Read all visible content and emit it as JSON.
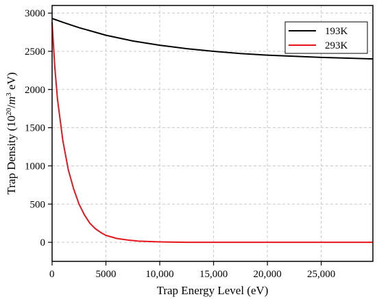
{
  "chart_data": {
    "type": "line",
    "title": "",
    "xlabel": "Trap Energy Level (eV)",
    "ylabel": {
      "prefix": "Trap Density (10",
      "sup1": "20",
      "mid": "/",
      "unit_m": "m",
      "sup2": "3",
      "suffix": " eV)"
    },
    "xlim": [
      0,
      29800
    ],
    "ylim": [
      -250,
      3100
    ],
    "x_ticks": [
      0,
      5000,
      10000,
      15000,
      20000,
      25000
    ],
    "x_tick_labels": [
      "0",
      "5000",
      "10,000",
      "15,000",
      "20,000",
      "25,000"
    ],
    "y_ticks": [
      0,
      500,
      1000,
      1500,
      2000,
      2500,
      3000
    ],
    "y_tick_labels": [
      "0",
      "500",
      "1000",
      "1500",
      "2000",
      "2500",
      "3000"
    ],
    "grid": true,
    "legend_position": "top-right",
    "series": [
      {
        "name": "193K",
        "color": "#000000",
        "x": [
          0,
          1000,
          2500,
          5000,
          7500,
          10000,
          12500,
          15000,
          17500,
          20000,
          22500,
          25000,
          27500,
          29800
        ],
        "y": [
          2930,
          2880,
          2810,
          2710,
          2635,
          2580,
          2535,
          2500,
          2470,
          2450,
          2435,
          2420,
          2410,
          2400
        ]
      },
      {
        "name": "293K",
        "color": "#e8141b",
        "x": [
          0,
          250,
          500,
          1000,
          1500,
          2000,
          2500,
          3000,
          3500,
          4000,
          4500,
          5000,
          6000,
          7000,
          8000,
          10000,
          12500,
          15000,
          20000,
          25000,
          29800
        ],
        "y": [
          2880,
          2300,
          1870,
          1330,
          950,
          700,
          500,
          360,
          250,
          180,
          130,
          90,
          50,
          30,
          15,
          5,
          0,
          0,
          0,
          0,
          0
        ]
      }
    ]
  }
}
